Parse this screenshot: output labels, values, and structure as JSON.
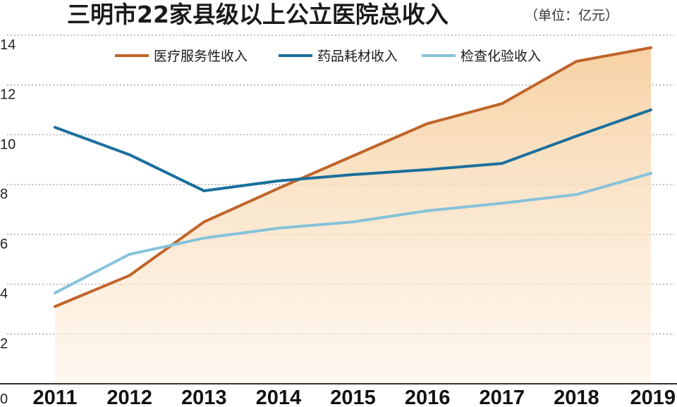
{
  "chart_data": {
    "type": "line",
    "title": "三明市22家县级以上公立医院总收入",
    "subtitle": "（单位：亿元）",
    "xlabel": "",
    "ylabel": "",
    "ylim": [
      0,
      14
    ],
    "yticks": [
      0,
      2,
      4,
      6,
      8,
      10,
      12,
      14
    ],
    "categories": [
      "2011",
      "2012",
      "2013",
      "2014",
      "2015",
      "2016",
      "2017",
      "2018",
      "2019"
    ],
    "grid": true,
    "legend_position": "top",
    "series": [
      {
        "name": "医疗服务性收入",
        "color": "#c0642a",
        "area_fill": true,
        "values": [
          3.1,
          4.35,
          6.5,
          7.85,
          9.15,
          10.45,
          11.25,
          12.95,
          13.5
        ]
      },
      {
        "name": "药品耗材收入",
        "color": "#1a6f9d",
        "values": [
          10.3,
          9.2,
          7.75,
          8.15,
          8.4,
          8.6,
          8.85,
          9.95,
          11.0
        ]
      },
      {
        "name": "检查化验收入",
        "color": "#86c2da",
        "values": [
          3.65,
          5.2,
          5.85,
          6.25,
          6.5,
          6.95,
          7.25,
          7.6,
          8.45
        ]
      }
    ]
  }
}
